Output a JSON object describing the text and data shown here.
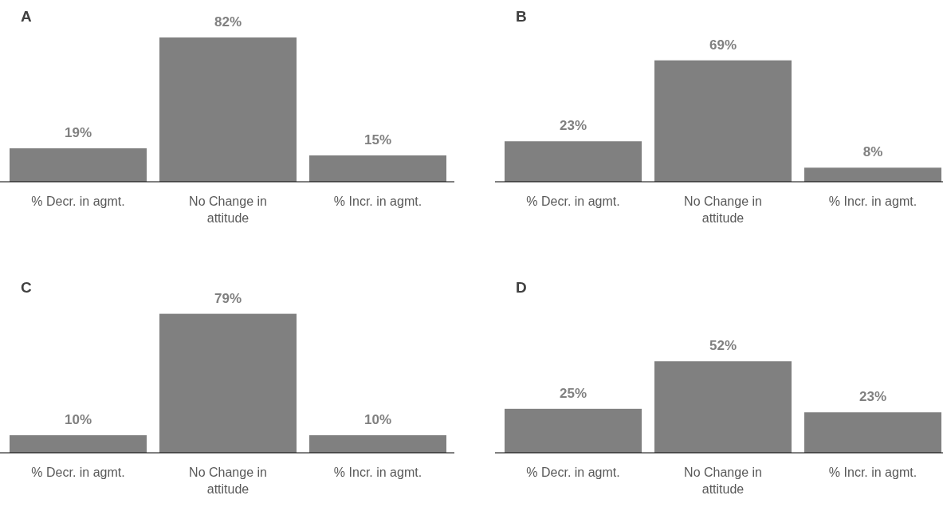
{
  "chart_data": [
    {
      "type": "bar",
      "title": "A",
      "categories": [
        "% Decr. in agmt.",
        "No Change in attitude",
        "% Incr. in agmt."
      ],
      "values": [
        19,
        82,
        15
      ],
      "value_labels": [
        "19%",
        "82%",
        "15%"
      ],
      "color": "#808080"
    },
    {
      "type": "bar",
      "title": "B",
      "categories": [
        "% Decr. in agmt.",
        "No Change in attitude",
        "% Incr. in agmt."
      ],
      "values": [
        23,
        69,
        8
      ],
      "value_labels": [
        "23%",
        "69%",
        "8%"
      ],
      "color": "#808080"
    },
    {
      "type": "bar",
      "title": "C",
      "categories": [
        "% Decr. in agmt.",
        "No Change in attitude",
        "% Incr. in agmt."
      ],
      "values": [
        10,
        79,
        10
      ],
      "value_labels": [
        "10%",
        "79%",
        "10%"
      ],
      "color": "#808080"
    },
    {
      "type": "bar",
      "title": "D",
      "categories": [
        "% Decr. in agmt.",
        "No Change in attitude",
        "% Incr. in agmt."
      ],
      "values": [
        25,
        52,
        23
      ],
      "value_labels": [
        "25%",
        "52%",
        "23%"
      ],
      "color": "#808080"
    }
  ]
}
